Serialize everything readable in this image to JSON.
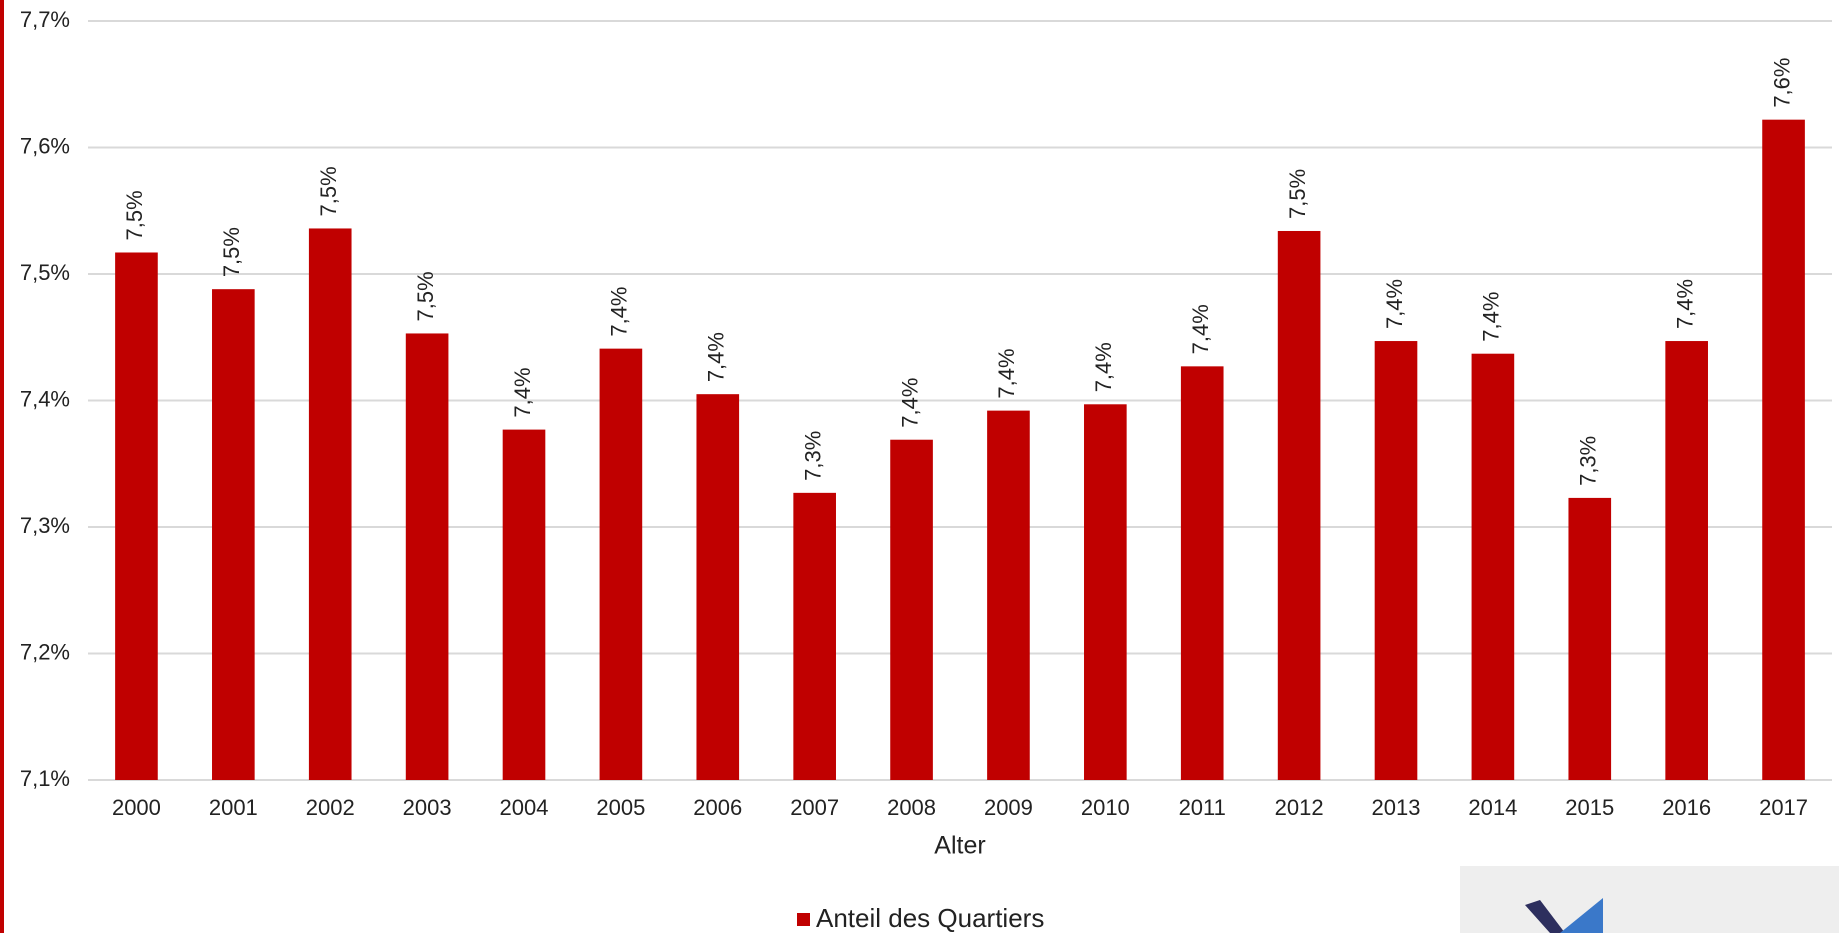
{
  "chart_data": {
    "type": "bar",
    "x_label": "Alter",
    "categories": [
      "2000",
      "2001",
      "2002",
      "2003",
      "2004",
      "2005",
      "2006",
      "2007",
      "2008",
      "2009",
      "2010",
      "2011",
      "2012",
      "2013",
      "2014",
      "2015",
      "2016",
      "2017"
    ],
    "series": [
      {
        "name": "Anteil des Quartiers",
        "color": "#c00000",
        "values": [
          7.517,
          7.488,
          7.536,
          7.453,
          7.377,
          7.441,
          7.405,
          7.327,
          7.369,
          7.392,
          7.397,
          7.427,
          7.534,
          7.447,
          7.437,
          7.323,
          7.447,
          7.622
        ],
        "value_labels": [
          "7,5%",
          "7,5%",
          "7,5%",
          "7,5%",
          "7,4%",
          "7,4%",
          "7,4%",
          "7,3%",
          "7,4%",
          "7,4%",
          "7,4%",
          "7,4%",
          "7,5%",
          "7,4%",
          "7,4%",
          "7,3%",
          "7,4%",
          "7,6%"
        ]
      }
    ],
    "ylim": [
      7.1,
      7.7
    ],
    "yticks": [
      {
        "value": 7.1,
        "label": "7,1%"
      },
      {
        "value": 7.2,
        "label": "7,2%"
      },
      {
        "value": 7.3,
        "label": "7,3%"
      },
      {
        "value": 7.4,
        "label": "7,4%"
      },
      {
        "value": 7.5,
        "label": "7,5%"
      },
      {
        "value": 7.6,
        "label": "7,6%"
      },
      {
        "value": 7.7,
        "label": "7,7%"
      }
    ],
    "grid": true,
    "legend": "bottom"
  }
}
